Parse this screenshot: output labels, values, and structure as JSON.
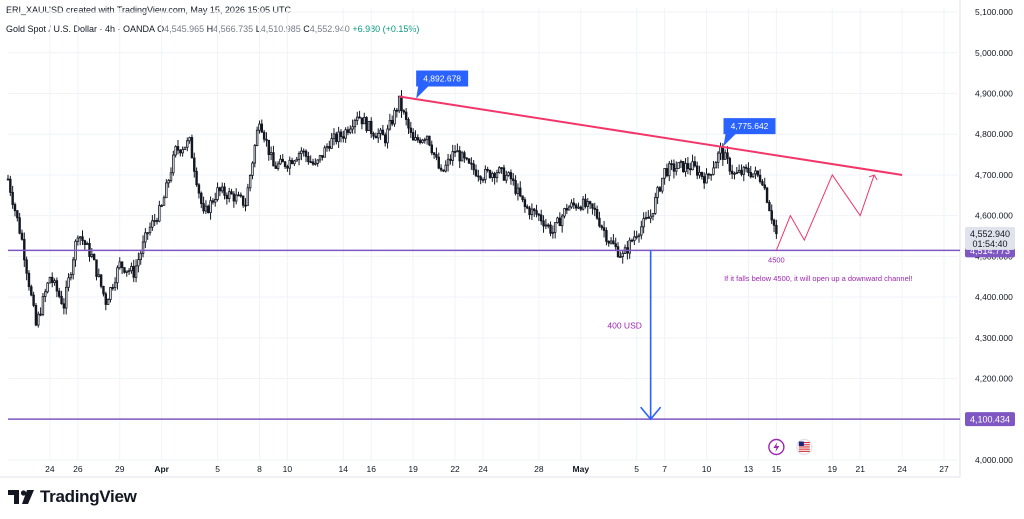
{
  "header": {
    "created_line": "ERI_XAUUSD created with TradingView.com, May 15, 2026 15:05 UTC",
    "symbol": "Gold Spot / U.S. Dollar · 4h · OANDA",
    "ohlc": [
      {
        "k": "O",
        "v": "4,545.965"
      },
      {
        "k": "H",
        "v": "4,566.735"
      },
      {
        "k": "L",
        "v": "4,510.985"
      },
      {
        "k": "C",
        "v": "4,552.940"
      }
    ],
    "change": "+6.980 (+0.15%)"
  },
  "branding": {
    "logo_icon": "tradingview-logo-icon",
    "text": "TradingView"
  },
  "colors": {
    "up": "#131722",
    "down": "#131722",
    "wick": "#131722",
    "trendline": "#f23669",
    "support": "#7e57c2",
    "measure": "#2962ff",
    "callout_bg": "#2962ff",
    "annotation": "#9c27b0",
    "projection": "#f23669",
    "grid": "#f0f3fa",
    "price_tag_bg": "#e0e3eb"
  },
  "chart_data": {
    "type": "candlestick",
    "title": "Gold Spot / U.S. Dollar · 4h · OANDA",
    "x_domain": [
      "Mar 21",
      "May 28"
    ],
    "ylim": [
      4000,
      5110
    ],
    "grid": true,
    "y_ticks": [
      "5,100.000",
      "5,000.000",
      "4,900.000",
      "4,800.000",
      "4,700.000",
      "4,600.000",
      "4,500.000",
      "4,400.000",
      "4,300.000",
      "4,200.000",
      "4,100.000",
      "4,000.000"
    ],
    "x_ticks": [
      {
        "date": "Mar 24",
        "label": "24"
      },
      {
        "date": "Mar 26",
        "label": "26"
      },
      {
        "date": "Mar 29",
        "label": "29"
      },
      {
        "date": "Apr 1",
        "label": "Apr",
        "bold": true
      },
      {
        "date": "Apr 5",
        "label": "5"
      },
      {
        "date": "Apr 8",
        "label": "8"
      },
      {
        "date": "Apr 10",
        "label": "10"
      },
      {
        "date": "Apr 14",
        "label": "14"
      },
      {
        "date": "Apr 16",
        "label": "16"
      },
      {
        "date": "Apr 19",
        "label": "19"
      },
      {
        "date": "Apr 22",
        "label": "22"
      },
      {
        "date": "Apr 24",
        "label": "24"
      },
      {
        "date": "Apr 28",
        "label": "28"
      },
      {
        "date": "May 1",
        "label": "May",
        "bold": true
      },
      {
        "date": "May 5",
        "label": "5"
      },
      {
        "date": "May 7",
        "label": "7"
      },
      {
        "date": "May 10",
        "label": "10"
      },
      {
        "date": "May 13",
        "label": "13"
      },
      {
        "date": "May 15",
        "label": "15"
      },
      {
        "date": "May 19",
        "label": "19"
      },
      {
        "date": "May 21",
        "label": "21"
      },
      {
        "date": "May 24",
        "label": "24"
      },
      {
        "date": "May 27",
        "label": "27"
      }
    ],
    "price_path": {
      "series": "approximate close path (OHLC generated around it)",
      "points": [
        [
          "Mar 21",
          4690
        ],
        [
          "Mar 22",
          4540
        ],
        [
          "Mar 23",
          4330
        ],
        [
          "Mar 24",
          4450
        ],
        [
          "Mar 25",
          4380
        ],
        [
          "Mar 26",
          4560
        ],
        [
          "Mar 27",
          4500
        ],
        [
          "Mar 28",
          4390
        ],
        [
          "Mar 29",
          4480
        ],
        [
          "Mar 30",
          4460
        ],
        [
          "Mar 31",
          4560
        ],
        [
          "Apr 1",
          4620
        ],
        [
          "Apr 2",
          4760
        ],
        [
          "Apr 3",
          4780
        ],
        [
          "Apr 4",
          4600
        ],
        [
          "Apr 5",
          4660
        ],
        [
          "Apr 6",
          4650
        ],
        [
          "Apr 7",
          4630
        ],
        [
          "Apr 8",
          4840
        ],
        [
          "Apr 9",
          4720
        ],
        [
          "Apr 10",
          4730
        ],
        [
          "Apr 11",
          4760
        ],
        [
          "Apr 12",
          4720
        ],
        [
          "Apr 13",
          4780
        ],
        [
          "Apr 14",
          4800
        ],
        [
          "Apr 15",
          4850
        ],
        [
          "Apr 16",
          4810
        ],
        [
          "Apr 17",
          4790
        ],
        [
          "Apr 18",
          4880
        ],
        [
          "Apr 19",
          4780
        ],
        [
          "Apr 20",
          4800
        ],
        [
          "Apr 21",
          4700
        ],
        [
          "Apr 22",
          4760
        ],
        [
          "Apr 23",
          4720
        ],
        [
          "Apr 24",
          4700
        ],
        [
          "Apr 25",
          4710
        ],
        [
          "Apr 26",
          4690
        ],
        [
          "Apr 27",
          4620
        ],
        [
          "Apr 28",
          4600
        ],
        [
          "Apr 29",
          4560
        ],
        [
          "Apr 30",
          4620
        ],
        [
          "May 1",
          4630
        ],
        [
          "May 2",
          4610
        ],
        [
          "May 3",
          4540
        ],
        [
          "May 4",
          4500
        ],
        [
          "May 5",
          4560
        ],
        [
          "May 6",
          4600
        ],
        [
          "May 7",
          4710
        ],
        [
          "May 8",
          4720
        ],
        [
          "May 9",
          4720
        ],
        [
          "May 10",
          4690
        ],
        [
          "May 11",
          4760
        ],
        [
          "May 12",
          4700
        ],
        [
          "May 13",
          4710
        ],
        [
          "May 14",
          4690
        ],
        [
          "May 15",
          4553
        ]
      ]
    },
    "trendline": {
      "from": [
        "Apr 18",
        4892.678
      ],
      "to": [
        "May 24",
        4700
      ]
    },
    "callouts": [
      {
        "date": "Apr 19",
        "price": 4892.678,
        "label": "4,892.678"
      },
      {
        "date": "May 11",
        "price": 4775.642,
        "label": "4,775.642"
      }
    ],
    "horizontal_levels": [
      {
        "price": 4514.773,
        "label": "4,514.773"
      },
      {
        "price": 4100.434,
        "label": "4,100.434"
      }
    ],
    "current_price": {
      "value": "4,552.940",
      "countdown": "01:54:40",
      "price": 4552.94
    },
    "measure": {
      "date": "May 6",
      "from": 4514.773,
      "to": 4100.434,
      "label": "400 USD"
    },
    "projection": [
      [
        "May 15",
        4515
      ],
      [
        "May 16",
        4600
      ],
      [
        "May 17",
        4540
      ],
      [
        "May 18",
        4620
      ],
      [
        "May 19",
        4700
      ],
      [
        "May 20",
        4650
      ],
      [
        "May 21",
        4600
      ],
      [
        "May 22",
        4700
      ]
    ],
    "annotations": [
      {
        "date": "May 15",
        "price": 4485,
        "text": "4500"
      },
      {
        "date": "May 18",
        "price": 4440,
        "text": "If it falls below 4500, it will open up a downward channel!"
      }
    ],
    "event_icons": [
      {
        "date": "May 15",
        "name": "lightning-event-icon"
      },
      {
        "date": "May 17",
        "name": "us-flag-event-icon"
      }
    ]
  }
}
